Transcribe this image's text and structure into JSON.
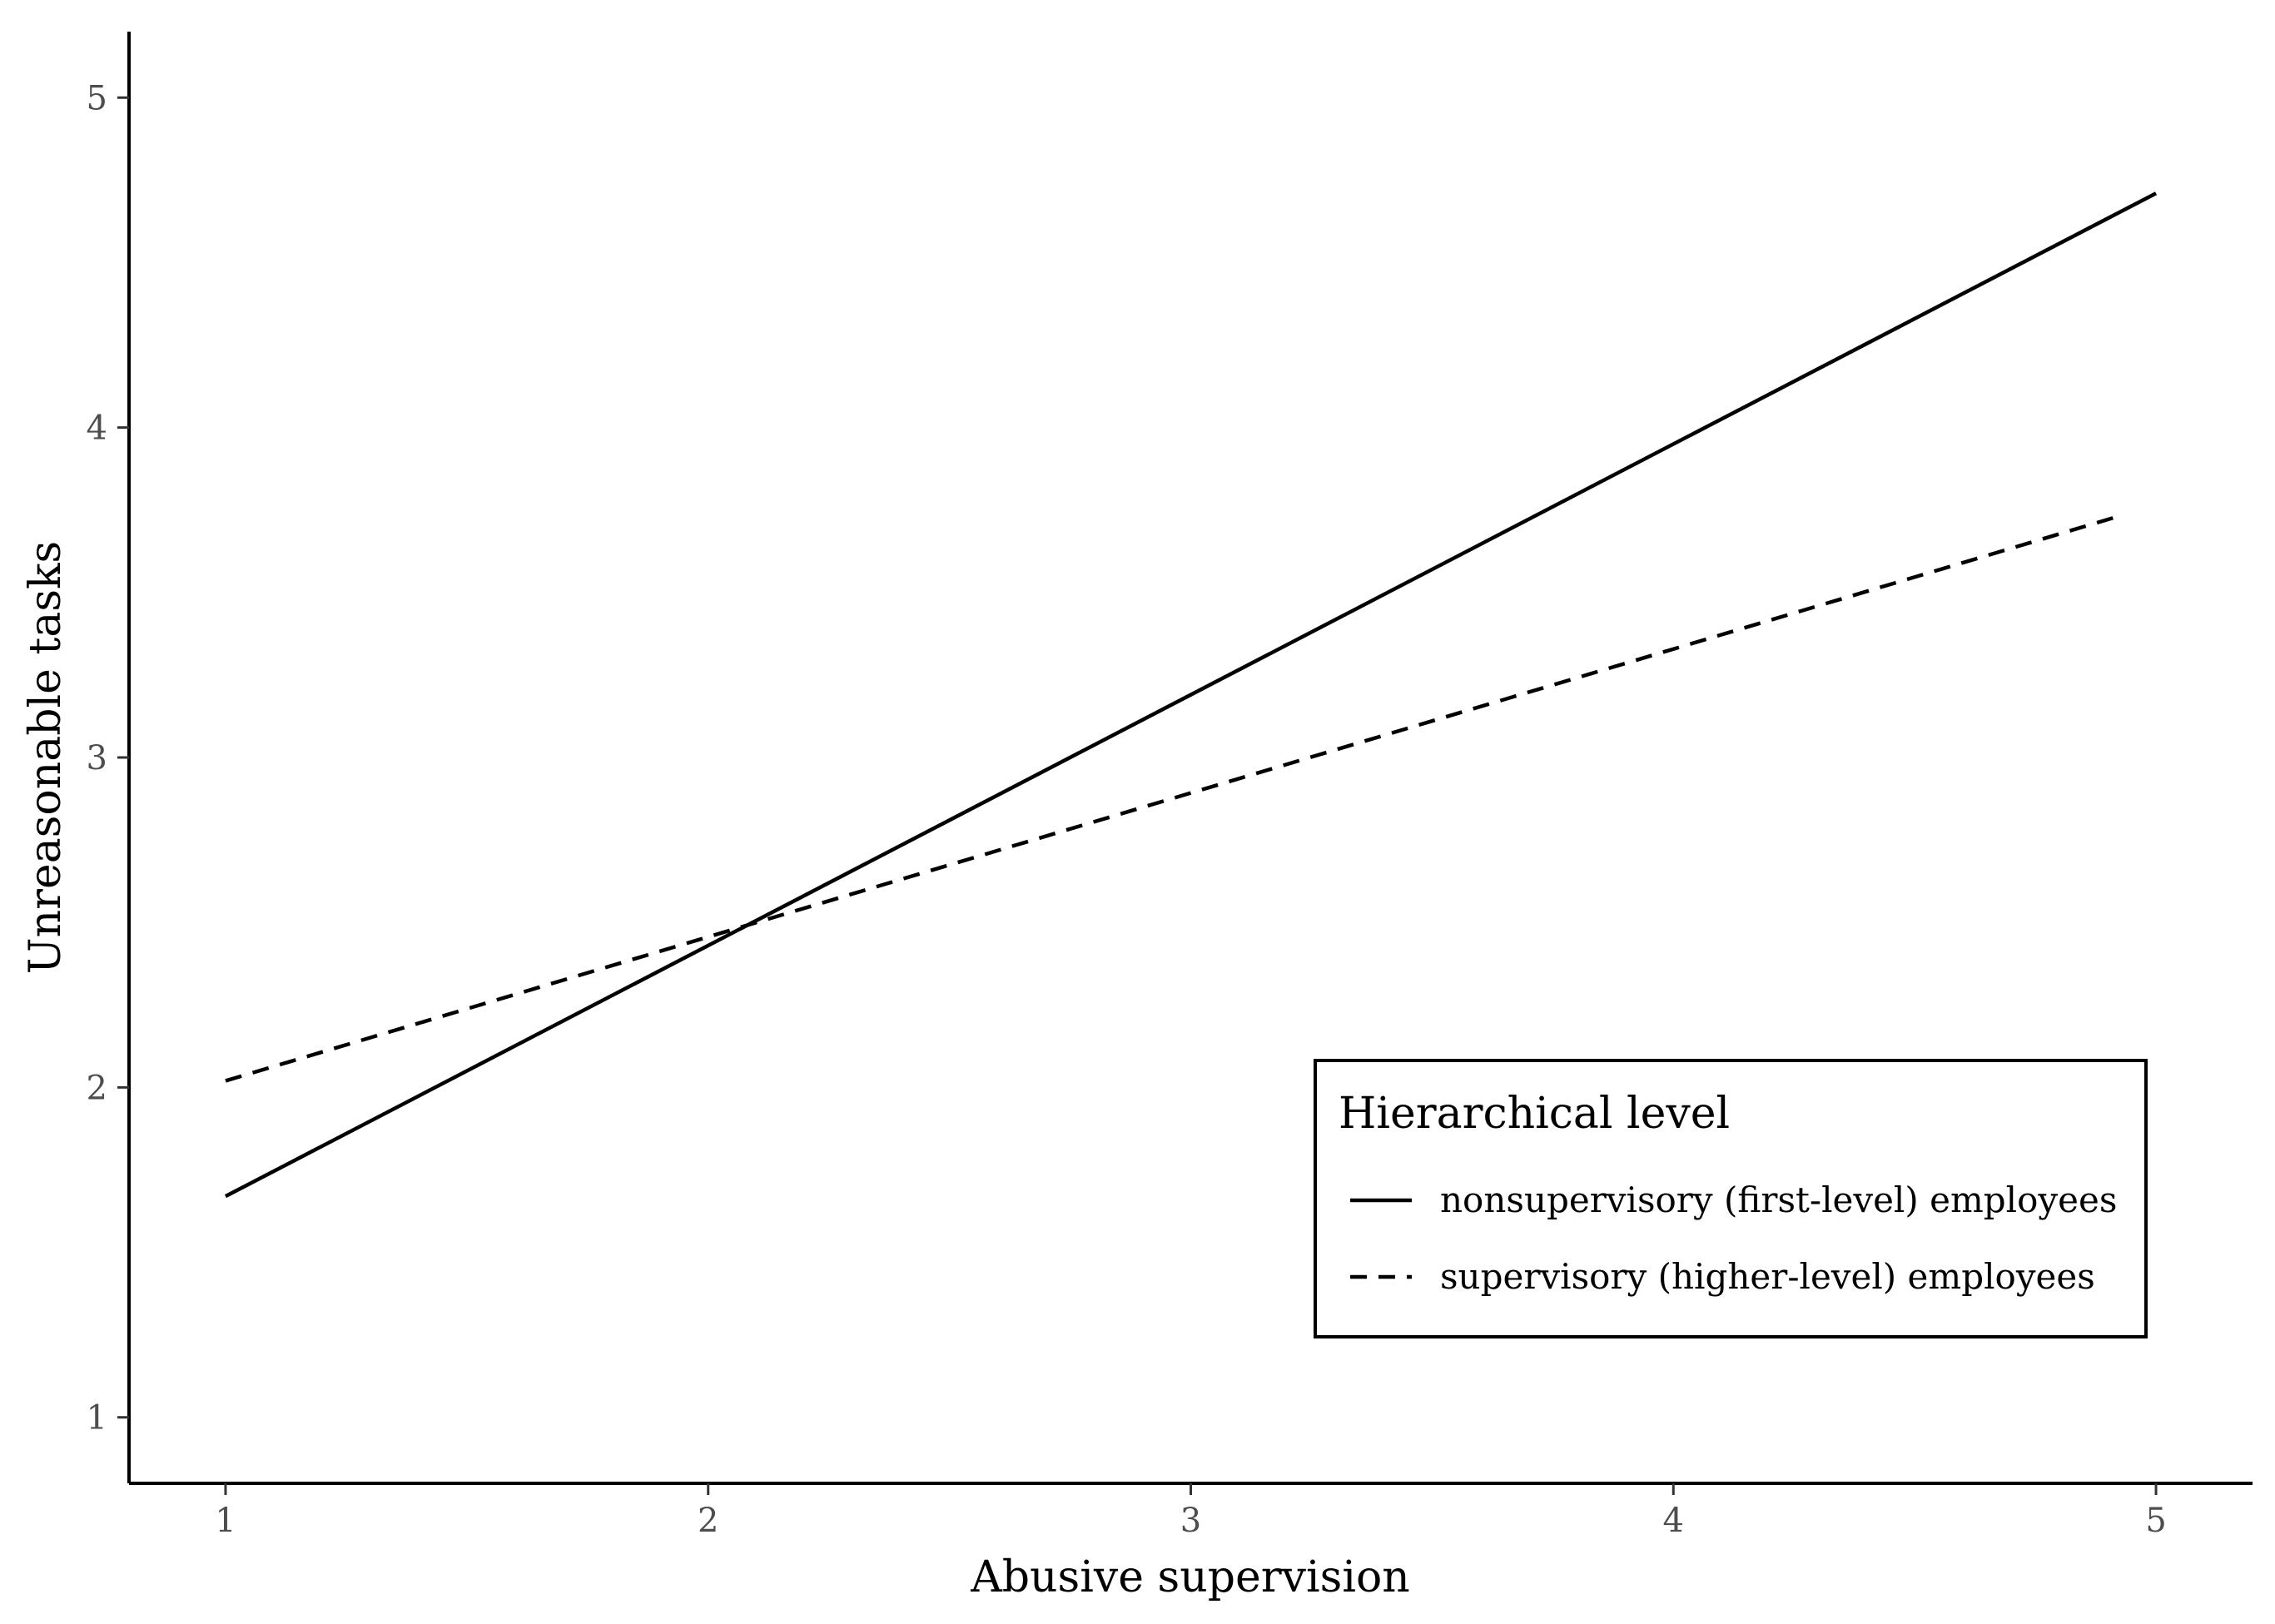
{
  "chart_data": {
    "type": "line",
    "xlabel": "Abusive supervision",
    "ylabel": "Unreasonable tasks",
    "xlim": [
      0.8,
      5.2
    ],
    "ylim": [
      0.8,
      5.2
    ],
    "x_ticks": [
      "1",
      "2",
      "3",
      "4",
      "5"
    ],
    "y_ticks": [
      "1",
      "2",
      "3",
      "4",
      "5"
    ],
    "grid": false,
    "legend": {
      "title": "Hierarchical level",
      "placement": "bottom-right",
      "entries": [
        "nonsupervisory (first-level) employees",
        "supervisory (higher-level) employees"
      ]
    },
    "series": [
      {
        "name": "nonsupervisory (first-level) employees",
        "style": "solid",
        "x": [
          1,
          5
        ],
        "y": [
          1.67,
          4.71
        ]
      },
      {
        "name": "supervisory (higher-level) employees",
        "style": "dashed",
        "x": [
          1,
          4.92
        ],
        "y": [
          2.02,
          3.73
        ]
      }
    ],
    "colors": {
      "line": "#000000",
      "tick_text": "#4d4d4d"
    }
  }
}
